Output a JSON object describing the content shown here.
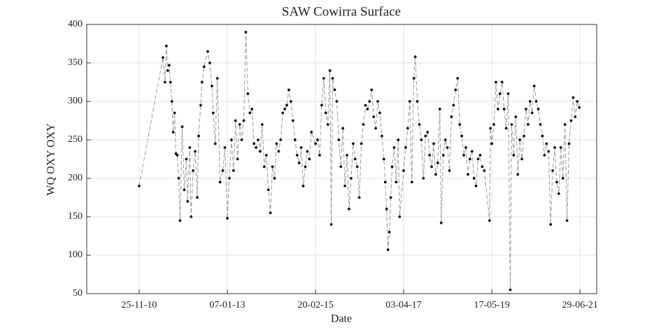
{
  "chart_data": {
    "type": "line",
    "title": "SAW Cowirra Surface",
    "x_label": "Date",
    "y_label": "WQ OXY OXY",
    "xlim": [
      "2009-08-22",
      "2021-11-22"
    ],
    "xticks": [
      {
        "value": "2010-11-25",
        "label": "25-11-10"
      },
      {
        "value": "2013-01-07",
        "label": "07-01-13"
      },
      {
        "value": "2015-02-20",
        "label": "20-02-15"
      },
      {
        "value": "2017-04-03",
        "label": "03-04-17"
      },
      {
        "value": "2019-05-17",
        "label": "17-05-19"
      },
      {
        "value": "2021-06-29",
        "label": "29-06-21"
      }
    ],
    "ylim": [
      50,
      400
    ],
    "yticks": [
      50,
      100,
      150,
      200,
      250,
      300,
      350,
      400
    ],
    "grid": true,
    "line_color": "#9a9a9a",
    "marker_color": "#111111",
    "x": [
      "2010-11-25",
      "2011-06-22",
      "2011-07-10",
      "2011-07-22",
      "2011-08-03",
      "2011-08-15",
      "2011-08-27",
      "2011-09-08",
      "2011-09-20",
      "2011-10-02",
      "2011-10-14",
      "2011-10-26",
      "2011-11-07",
      "2011-11-19",
      "2011-12-08",
      "2011-12-26",
      "2012-01-13",
      "2012-01-25",
      "2012-02-12",
      "2012-02-24",
      "2012-03-13",
      "2012-03-31",
      "2012-04-18",
      "2012-04-30",
      "2012-05-18",
      "2012-05-30",
      "2012-06-17",
      "2012-07-19",
      "2012-08-06",
      "2012-08-24",
      "2012-09-05",
      "2012-09-23",
      "2012-10-11",
      "2012-11-04",
      "2012-11-28",
      "2012-12-16",
      "2013-01-07",
      "2013-01-25",
      "2013-02-12",
      "2013-03-02",
      "2013-03-20",
      "2013-04-07",
      "2013-04-25",
      "2013-05-13",
      "2013-05-31",
      "2013-06-18",
      "2013-07-06",
      "2013-07-24",
      "2013-08-11",
      "2013-08-29",
      "2013-09-16",
      "2013-10-04",
      "2013-10-22",
      "2013-11-09",
      "2013-11-27",
      "2013-12-15",
      "2014-01-02",
      "2014-01-20",
      "2014-02-07",
      "2014-02-25",
      "2014-03-15",
      "2014-04-02",
      "2014-04-20",
      "2014-05-08",
      "2014-05-26",
      "2014-06-13",
      "2014-07-01",
      "2014-07-19",
      "2014-08-06",
      "2014-08-24",
      "2014-09-11",
      "2014-09-29",
      "2014-10-17",
      "2014-11-04",
      "2014-11-22",
      "2014-12-10",
      "2014-12-28",
      "2015-01-15",
      "2015-02-20",
      "2015-03-10",
      "2015-03-28",
      "2015-04-15",
      "2015-05-03",
      "2015-05-21",
      "2015-06-08",
      "2015-06-26",
      "2015-07-08",
      "2015-07-20",
      "2015-08-07",
      "2015-08-25",
      "2015-09-12",
      "2015-09-30",
      "2015-10-18",
      "2015-11-05",
      "2015-11-23",
      "2015-12-11",
      "2015-12-29",
      "2016-01-16",
      "2016-02-03",
      "2016-02-21",
      "2016-03-10",
      "2016-03-28",
      "2016-04-15",
      "2016-05-03",
      "2016-05-21",
      "2016-06-08",
      "2016-06-26",
      "2016-07-14",
      "2016-08-01",
      "2016-08-19",
      "2016-09-06",
      "2016-09-24",
      "2016-10-12",
      "2016-10-24",
      "2016-11-05",
      "2016-11-17",
      "2016-11-29",
      "2016-12-11",
      "2016-12-23",
      "2017-01-10",
      "2017-01-28",
      "2017-02-15",
      "2017-02-27",
      "2017-04-03",
      "2017-04-21",
      "2017-05-09",
      "2017-05-27",
      "2017-06-14",
      "2017-07-02",
      "2017-07-14",
      "2017-08-01",
      "2017-08-19",
      "2017-09-06",
      "2017-09-24",
      "2017-10-12",
      "2017-10-30",
      "2017-11-17",
      "2017-12-05",
      "2017-12-23",
      "2018-01-10",
      "2018-01-28",
      "2018-02-15",
      "2018-02-27",
      "2018-03-17",
      "2018-04-04",
      "2018-04-22",
      "2018-05-10",
      "2018-05-28",
      "2018-06-15",
      "2018-07-03",
      "2018-07-21",
      "2018-08-08",
      "2018-08-26",
      "2018-09-13",
      "2018-10-01",
      "2018-10-19",
      "2018-11-06",
      "2018-11-24",
      "2018-12-12",
      "2018-12-30",
      "2019-01-17",
      "2019-02-04",
      "2019-02-22",
      "2019-03-12",
      "2019-04-27",
      "2019-05-05",
      "2019-05-17",
      "2019-06-04",
      "2019-06-22",
      "2019-07-10",
      "2019-07-28",
      "2019-08-15",
      "2019-09-02",
      "2019-09-20",
      "2019-10-08",
      "2019-10-26",
      "2019-11-07",
      "2019-11-25",
      "2019-12-13",
      "2019-12-31",
      "2020-01-18",
      "2020-02-05",
      "2020-02-23",
      "2020-03-12",
      "2020-03-30",
      "2020-04-17",
      "2020-05-05",
      "2020-05-23",
      "2020-06-10",
      "2020-06-28",
      "2020-07-16",
      "2020-08-03",
      "2020-08-21",
      "2020-09-08",
      "2020-09-26",
      "2020-10-14",
      "2020-11-01",
      "2020-11-19",
      "2020-12-07",
      "2020-12-25",
      "2021-01-12",
      "2021-01-30",
      "2021-02-17",
      "2021-03-07",
      "2021-03-25",
      "2021-04-12",
      "2021-04-30",
      "2021-05-18",
      "2021-06-05",
      "2021-06-23"
    ],
    "values": [
      190,
      357,
      325,
      372,
      340,
      347,
      325,
      300,
      260,
      285,
      232,
      230,
      200,
      145,
      267,
      185,
      225,
      170,
      240,
      150,
      210,
      235,
      175,
      255,
      295,
      325,
      345,
      365,
      350,
      320,
      285,
      245,
      330,
      195,
      210,
      240,
      148,
      200,
      250,
      210,
      275,
      225,
      270,
      250,
      275,
      390,
      310,
      285,
      290,
      245,
      240,
      250,
      235,
      270,
      215,
      230,
      185,
      155,
      215,
      200,
      245,
      235,
      250,
      285,
      290,
      295,
      315,
      300,
      275,
      250,
      230,
      220,
      240,
      190,
      215,
      235,
      225,
      260,
      245,
      250,
      230,
      295,
      330,
      285,
      270,
      340,
      140,
      330,
      315,
      300,
      250,
      215,
      265,
      190,
      230,
      160,
      200,
      245,
      225,
      215,
      175,
      245,
      270,
      295,
      290,
      300,
      315,
      280,
      265,
      300,
      285,
      255,
      225,
      195,
      160,
      107,
      130,
      175,
      215,
      240,
      195,
      250,
      150,
      210,
      240,
      265,
      300,
      195,
      330,
      358,
      300,
      270,
      250,
      200,
      255,
      260,
      230,
      215,
      245,
      205,
      220,
      290,
      142,
      230,
      250,
      240,
      210,
      280,
      295,
      315,
      330,
      270,
      255,
      230,
      240,
      205,
      225,
      235,
      200,
      190,
      225,
      230,
      215,
      210,
      145,
      265,
      245,
      270,
      325,
      290,
      310,
      325,
      290,
      265,
      310,
      55,
      270,
      230,
      280,
      205,
      250,
      225,
      255,
      290,
      270,
      300,
      285,
      320,
      300,
      290,
      270,
      255,
      230,
      245,
      235,
      140,
      210,
      240,
      195,
      180,
      240,
      200,
      270,
      145,
      245,
      275,
      305,
      280,
      300,
      292
    ]
  }
}
